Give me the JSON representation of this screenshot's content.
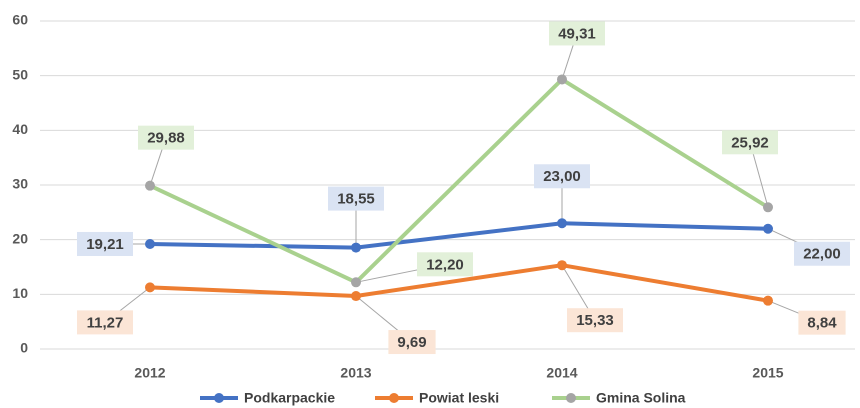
{
  "chart_data": {
    "type": "line",
    "categories": [
      "2012",
      "2013",
      "2014",
      "2015"
    ],
    "series": [
      {
        "name": "Podkarpackie",
        "color": "#4472c4",
        "marker_color": "#4472c4",
        "label_bg": "#dae3f3",
        "values": [
          19.21,
          18.55,
          23.0,
          22.0
        ],
        "value_labels": [
          "19,21",
          "18,55",
          "23,00",
          "22,00"
        ]
      },
      {
        "name": "Powiat leski",
        "color": "#ed7d31",
        "marker_color": "#ed7d31",
        "label_bg": "#fbe5d6",
        "values": [
          11.27,
          9.69,
          15.33,
          8.84
        ],
        "value_labels": [
          "11,27",
          "9,69",
          "15,33",
          "8,84"
        ]
      },
      {
        "name": "Gmina Solina",
        "color": "#a9d18e",
        "marker_color": "#a5a5a5",
        "label_bg": "#e2f0d9",
        "values": [
          29.88,
          12.2,
          49.31,
          25.92
        ],
        "value_labels": [
          "29,88",
          "12,20",
          "49,31",
          "25,92"
        ]
      }
    ],
    "ylim": [
      0,
      60
    ],
    "yticks": [
      0,
      10,
      20,
      30,
      40,
      50,
      60
    ],
    "grid": true,
    "legend": "bottom"
  }
}
